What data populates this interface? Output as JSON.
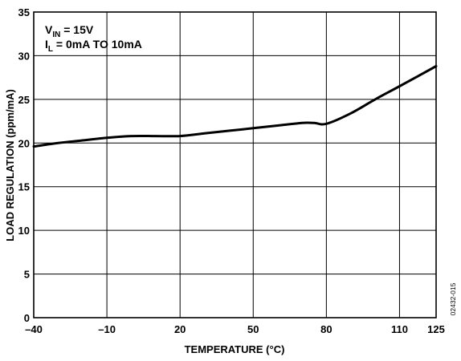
{
  "chart_data": {
    "type": "line",
    "xlabel": "TEMPERATURE (°C)",
    "ylabel": "LOAD REGULATION (ppm/mA)",
    "xlim": [
      -40,
      125
    ],
    "ylim": [
      0,
      35
    ],
    "x_ticks": [
      -40,
      -10,
      20,
      50,
      80,
      110,
      125
    ],
    "x_tick_labels": [
      "–40",
      "–10",
      "20",
      "50",
      "80",
      "110",
      "125"
    ],
    "y_ticks": [
      0,
      5,
      10,
      15,
      20,
      25,
      30,
      35
    ],
    "y_tick_labels": [
      "0",
      "5",
      "10",
      "15",
      "20",
      "25",
      "30",
      "35"
    ],
    "grid": true,
    "annotations": {
      "vin": {
        "main": "V",
        "sub": "IN",
        "rest": " = 15V"
      },
      "il": {
        "main": "I",
        "sub": "L",
        "rest": " = 0mA TO 10mA"
      }
    },
    "figure_id": "02432-015",
    "series": [
      {
        "x": [
          -40,
          -30,
          -20,
          -10,
          0,
          10,
          20,
          30,
          40,
          50,
          60,
          70,
          75,
          80,
          90,
          100,
          110,
          125
        ],
        "y": [
          19.6,
          20.0,
          20.3,
          20.6,
          20.8,
          20.8,
          20.8,
          21.1,
          21.4,
          21.7,
          22.0,
          22.3,
          22.3,
          22.2,
          23.4,
          25.0,
          26.5,
          28.8
        ]
      }
    ]
  }
}
